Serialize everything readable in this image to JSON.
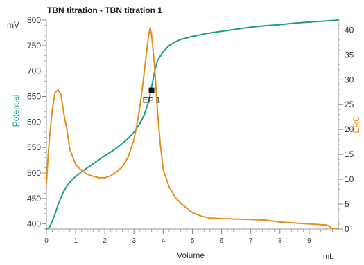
{
  "chart_data": {
    "type": "line",
    "title": "TBN titration - TBN titration 1",
    "xlabel": "Volume",
    "x_unit": "mL",
    "xlim": [
      0,
      10
    ],
    "x_ticks": [
      "0",
      "1",
      "2",
      "3",
      "4",
      "5",
      "6",
      "7",
      "8",
      "9"
    ],
    "grid": false,
    "y_left": {
      "label": "Potential",
      "unit": "mV",
      "color": "#1a9e8f",
      "ylim": [
        390,
        800
      ],
      "ticks": [
        "400",
        "450",
        "500",
        "550",
        "600",
        "650",
        "700",
        "750",
        "800"
      ]
    },
    "y_right": {
      "label": "ERC",
      "color": "#e3901e",
      "ylim": [
        0,
        42
      ],
      "ticks": [
        "0",
        "5",
        "10",
        "15",
        "20",
        "25",
        "30",
        "35",
        "40"
      ]
    },
    "series": [
      {
        "axis": "left",
        "color": "#1a9e8f",
        "points": [
          [
            0,
            390
          ],
          [
            0.1,
            393
          ],
          [
            0.2,
            405
          ],
          [
            0.3,
            420
          ],
          [
            0.4,
            438
          ],
          [
            0.5,
            452
          ],
          [
            0.6,
            465
          ],
          [
            0.7,
            474
          ],
          [
            0.8,
            482
          ],
          [
            0.9,
            488
          ],
          [
            1.0,
            493
          ],
          [
            1.2,
            502
          ],
          [
            1.4,
            510
          ],
          [
            1.6,
            518
          ],
          [
            1.8,
            526
          ],
          [
            2.0,
            534
          ],
          [
            2.2,
            541
          ],
          [
            2.4,
            549
          ],
          [
            2.6,
            558
          ],
          [
            2.8,
            568
          ],
          [
            3.0,
            580
          ],
          [
            3.2,
            597
          ],
          [
            3.35,
            614
          ],
          [
            3.5,
            640
          ],
          [
            3.6,
            668
          ],
          [
            3.7,
            698
          ],
          [
            3.8,
            720
          ],
          [
            4.0,
            738
          ],
          [
            4.2,
            750
          ],
          [
            4.4,
            757
          ],
          [
            4.6,
            762
          ],
          [
            5.0,
            768
          ],
          [
            5.5,
            774
          ],
          [
            6.0,
            778
          ],
          [
            6.5,
            782
          ],
          [
            7.0,
            786
          ],
          [
            7.5,
            789
          ],
          [
            8.0,
            791
          ],
          [
            8.5,
            794
          ],
          [
            9.0,
            796
          ],
          [
            9.5,
            798
          ],
          [
            10.0,
            800
          ]
        ]
      },
      {
        "axis": "right",
        "color": "#e3901e",
        "points": [
          [
            0,
            9
          ],
          [
            0.05,
            14
          ],
          [
            0.1,
            18
          ],
          [
            0.2,
            24
          ],
          [
            0.3,
            27.5
          ],
          [
            0.4,
            28
          ],
          [
            0.5,
            27
          ],
          [
            0.6,
            23
          ],
          [
            0.7,
            20
          ],
          [
            0.8,
            16
          ],
          [
            1.0,
            13
          ],
          [
            1.2,
            11.8
          ],
          [
            1.4,
            11
          ],
          [
            1.6,
            10.6
          ],
          [
            1.8,
            10.3
          ],
          [
            2.0,
            10.3
          ],
          [
            2.2,
            10.7
          ],
          [
            2.4,
            11.5
          ],
          [
            2.6,
            12.5
          ],
          [
            2.8,
            14.5
          ],
          [
            3.0,
            18
          ],
          [
            3.1,
            21
          ],
          [
            3.2,
            24.5
          ],
          [
            3.3,
            29
          ],
          [
            3.4,
            34
          ],
          [
            3.5,
            39
          ],
          [
            3.55,
            40.5
          ],
          [
            3.6,
            39
          ],
          [
            3.7,
            33
          ],
          [
            3.8,
            24
          ],
          [
            3.9,
            17
          ],
          [
            4.0,
            12
          ],
          [
            4.2,
            8.5
          ],
          [
            4.4,
            6.5
          ],
          [
            4.6,
            5.2
          ],
          [
            4.8,
            4.2
          ],
          [
            5.0,
            3.3
          ],
          [
            5.3,
            2.6
          ],
          [
            5.6,
            2.2
          ],
          [
            6.0,
            2.1
          ],
          [
            6.5,
            2.0
          ],
          [
            7.0,
            1.9
          ],
          [
            7.5,
            1.8
          ],
          [
            8.0,
            1.4
          ],
          [
            8.5,
            1.2
          ],
          [
            9.0,
            1.0
          ],
          [
            9.6,
            0.8
          ],
          [
            9.8,
            0.1
          ],
          [
            10.0,
            0.1
          ]
        ]
      }
    ],
    "annotations": [
      {
        "label": "EP 1",
        "x": 3.6,
        "y_left": 662
      }
    ]
  }
}
